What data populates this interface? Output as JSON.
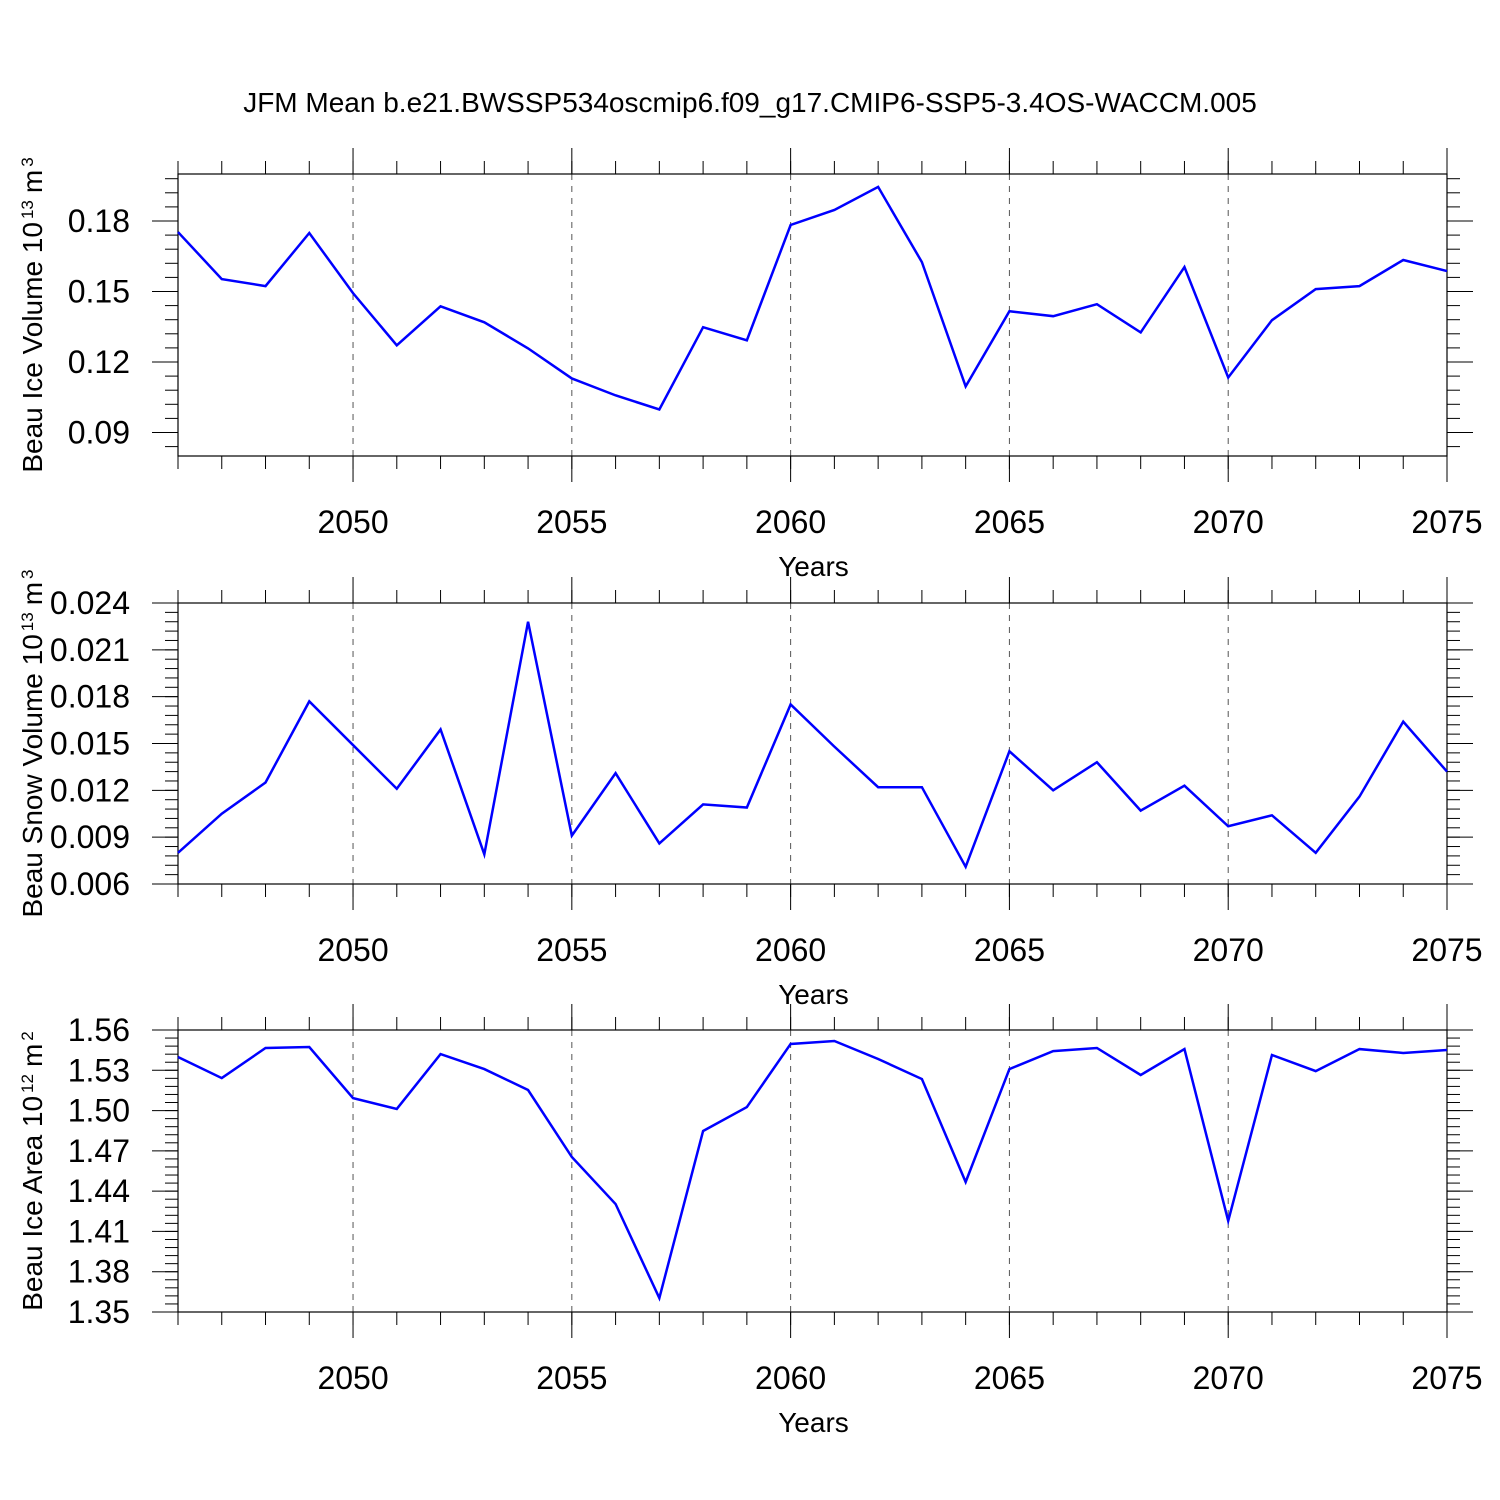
{
  "title": "JFM Mean b.e21.BWSSP534oscmip6.f09_g17.CMIP6-SSP5-3.4OS-WACCM.005",
  "chart_data": [
    {
      "type": "line",
      "xlabel": "Years",
      "ylabel": [
        "Beau Ice Volume 10",
        "13",
        "m",
        "3"
      ],
      "x": [
        2046,
        2047,
        2048,
        2049,
        2050,
        2051,
        2052,
        2053,
        2054,
        2055,
        2056,
        2057,
        2058,
        2059,
        2060,
        2061,
        2062,
        2063,
        2064,
        2065,
        2066,
        2067,
        2068,
        2069,
        2070,
        2071,
        2072,
        2073,
        2074,
        2075
      ],
      "series": [
        {
          "color": "#0000ff",
          "values": [
            0.1753,
            0.1553,
            0.1523,
            0.1749,
            0.1493,
            0.1271,
            0.1437,
            0.1369,
            0.1258,
            0.113,
            0.1058,
            0.0998,
            0.1348,
            0.1292,
            0.1783,
            0.1847,
            0.1945,
            0.1625,
            0.1096,
            0.1416,
            0.1395,
            0.1446,
            0.1326,
            0.1604,
            0.1134,
            0.1378,
            0.151,
            0.1523,
            0.1634,
            0.1587
          ]
        }
      ],
      "xlim": [
        2046,
        2075
      ],
      "xticks": [
        2050,
        2055,
        2060,
        2065,
        2070,
        2075
      ],
      "ylim": [
        0.08,
        0.2
      ],
      "yticks": [
        0.09,
        0.12,
        0.15,
        0.18
      ],
      "grid": "x"
    },
    {
      "type": "line",
      "xlabel": "Years",
      "ylabel": [
        "Beau Snow Volume 10",
        "13",
        "m",
        "3"
      ],
      "x": [
        2046,
        2047,
        2048,
        2049,
        2050,
        2051,
        2052,
        2053,
        2054,
        2055,
        2056,
        2057,
        2058,
        2059,
        2060,
        2061,
        2062,
        2063,
        2064,
        2065,
        2066,
        2067,
        2068,
        2069,
        2070,
        2071,
        2072,
        2073,
        2074,
        2075
      ],
      "series": [
        {
          "color": "#0000ff",
          "values": [
            0.008,
            0.0105,
            0.0125,
            0.0177,
            0.0149,
            0.0121,
            0.0159,
            0.0079,
            0.0228,
            0.0091,
            0.0131,
            0.0086,
            0.0111,
            0.0109,
            0.0175,
            0.0148,
            0.0122,
            0.0122,
            0.0071,
            0.0145,
            0.012,
            0.0138,
            0.0107,
            0.0123,
            0.0097,
            0.0104,
            0.008,
            0.0116,
            0.0164,
            0.0132
          ]
        }
      ],
      "xlim": [
        2046,
        2075
      ],
      "xticks": [
        2050,
        2055,
        2060,
        2065,
        2070,
        2075
      ],
      "ylim": [
        0.006,
        0.024
      ],
      "yticks": [
        0.006,
        0.009,
        0.012,
        0.015,
        0.018,
        0.021,
        0.024
      ],
      "grid": "x"
    },
    {
      "type": "line",
      "xlabel": "Years",
      "ylabel": [
        "Beau Ice Area 10",
        "12",
        "m",
        "2"
      ],
      "x": [
        2046,
        2047,
        2048,
        2049,
        2050,
        2051,
        2052,
        2053,
        2054,
        2055,
        2056,
        2057,
        2058,
        2059,
        2060,
        2061,
        2062,
        2063,
        2064,
        2065,
        2066,
        2067,
        2068,
        2069,
        2070,
        2071,
        2072,
        2073,
        2074,
        2075
      ],
      "series": [
        {
          "color": "#0000ff",
          "values": [
            1.5399,
            1.5242,
            1.5466,
            1.5473,
            1.5093,
            1.5012,
            1.5421,
            1.5309,
            1.5153,
            1.4654,
            1.4304,
            1.3604,
            1.4848,
            1.5026,
            1.5496,
            1.5518,
            1.5384,
            1.5235,
            1.4468,
            1.5309,
            1.5443,
            1.5466,
            1.5265,
            1.5458,
            1.4178,
            1.5414,
            1.5294,
            1.5458,
            1.5429,
            1.5451
          ]
        }
      ],
      "xlim": [
        2046,
        2075
      ],
      "xticks": [
        2050,
        2055,
        2060,
        2065,
        2070,
        2075
      ],
      "ylim": [
        1.35,
        1.56
      ],
      "yticks": [
        1.35,
        1.38,
        1.41,
        1.44,
        1.47,
        {
          "value": 1.5,
          "label": "1.50"
        },
        1.53,
        1.56
      ],
      "grid": "x"
    }
  ]
}
